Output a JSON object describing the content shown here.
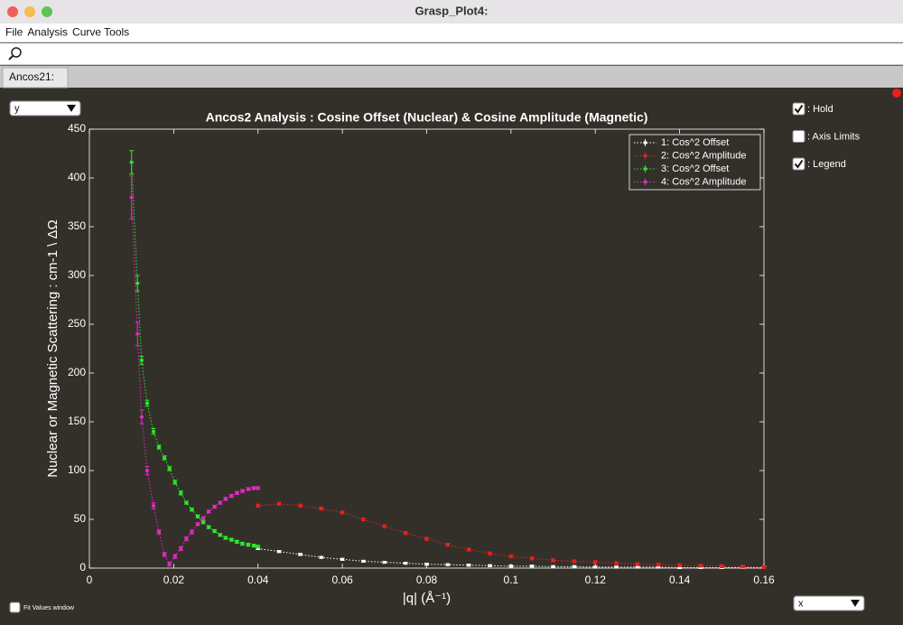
{
  "window": {
    "title": "Grasp_Plot4:"
  },
  "menu": [
    "File",
    "Analysis",
    "Curve Tools"
  ],
  "tab": "Ancos21:",
  "y_selector": "y",
  "x_selector": "x",
  "checkboxes": [
    {
      "label": ": Hold",
      "checked": true
    },
    {
      "label": ": Axis Limits",
      "checked": false
    },
    {
      "label": ": Legend",
      "checked": true
    }
  ],
  "fit_checkbox": {
    "label": "Fit Values window",
    "checked": false
  },
  "chart_data": {
    "type": "line",
    "title": "Ancos2 Analysis : Cosine Offset (Nuclear) & Cosine Amplitude (Magnetic)",
    "xlabel": "|q|  (Å⁻¹)",
    "ylabel": "Nuclear  or  Magnetic  Scattering  :  cm-1  \\  ΔΩ",
    "xlim": [
      0,
      0.16
    ],
    "ylim": [
      0,
      450
    ],
    "xticks": [
      0,
      0.02,
      0.04,
      0.06,
      0.08,
      0.1,
      0.12,
      0.14,
      0.16
    ],
    "yticks": [
      0,
      50,
      100,
      150,
      200,
      250,
      300,
      350,
      400,
      450
    ],
    "legend": "upper right",
    "series": [
      {
        "name": "1: Cos^2 Offset",
        "color": "#ffffff",
        "x": [
          0.04,
          0.045,
          0.05,
          0.055,
          0.06,
          0.065,
          0.07,
          0.075,
          0.08,
          0.085,
          0.09,
          0.095,
          0.1,
          0.105,
          0.11,
          0.115,
          0.12,
          0.125,
          0.13,
          0.135,
          0.14,
          0.145,
          0.15,
          0.155,
          0.16
        ],
        "values": [
          20,
          17,
          14,
          11,
          9,
          7,
          6,
          5,
          4,
          3.5,
          3,
          2.5,
          2,
          2,
          1.5,
          1.5,
          1,
          1,
          1,
          1,
          0.5,
          0.5,
          0.5,
          0.5,
          0.5
        ],
        "errors": [
          1,
          1,
          1,
          1,
          1,
          1,
          1,
          1,
          1,
          1,
          1,
          1,
          1,
          1,
          1,
          1,
          1,
          1,
          1,
          1,
          1,
          1,
          1,
          1,
          1
        ]
      },
      {
        "name": "2: Cos^2 Amplitude",
        "color": "#e8201c",
        "x": [
          0.04,
          0.045,
          0.05,
          0.055,
          0.06,
          0.065,
          0.07,
          0.075,
          0.08,
          0.085,
          0.09,
          0.095,
          0.1,
          0.105,
          0.11,
          0.115,
          0.12,
          0.125,
          0.13,
          0.135,
          0.14,
          0.145,
          0.15,
          0.155,
          0.16
        ],
        "values": [
          64,
          66,
          64,
          61,
          57,
          50,
          43,
          36,
          30,
          24,
          19,
          15,
          12,
          10,
          8,
          7,
          6,
          5,
          4,
          3.5,
          3,
          2.5,
          2,
          1.5,
          1
        ],
        "errors": [
          1.5,
          1.5,
          1.5,
          1.5,
          1.5,
          1.5,
          1.5,
          1.5,
          1.5,
          1.5,
          1.5,
          1.5,
          1.5,
          1.5,
          1.5,
          1.5,
          1.5,
          1.5,
          1.5,
          1.5,
          1.5,
          1.5,
          1.5,
          1.5,
          1.5
        ]
      },
      {
        "name": "3: Cos^2 Offset",
        "color": "#2ee82a",
        "x": [
          0.01,
          0.0114,
          0.0124,
          0.0137,
          0.0152,
          0.0165,
          0.0178,
          0.019,
          0.0203,
          0.0217,
          0.023,
          0.0243,
          0.0257,
          0.027,
          0.0283,
          0.0297,
          0.031,
          0.0323,
          0.0337,
          0.035,
          0.0363,
          0.0377,
          0.039,
          0.04
        ],
        "values": [
          416,
          292,
          213,
          169,
          140,
          124,
          113,
          102,
          88,
          77,
          67,
          60,
          53,
          47,
          42,
          38,
          34,
          31,
          29,
          27,
          25,
          24,
          23,
          22
        ],
        "errors": [
          12,
          8,
          4,
          3,
          3,
          2,
          2,
          2,
          2,
          2,
          1.5,
          1.5,
          1.5,
          1.5,
          1.5,
          1.5,
          1.5,
          1.5,
          1.5,
          1.5,
          1.5,
          1.5,
          1.5,
          1.5
        ]
      },
      {
        "name": "4: Cos^2 Amplitude",
        "color": "#e02cc0",
        "x": [
          0.01,
          0.0114,
          0.0124,
          0.0137,
          0.0152,
          0.0165,
          0.0178,
          0.019,
          0.0203,
          0.0217,
          0.023,
          0.0243,
          0.0257,
          0.027,
          0.0283,
          0.0297,
          0.031,
          0.0323,
          0.0337,
          0.035,
          0.0363,
          0.0377,
          0.039,
          0.04
        ],
        "values": [
          380,
          240,
          155,
          100,
          64,
          37,
          14,
          4,
          12,
          20,
          30,
          37,
          45,
          51,
          58,
          63,
          67,
          71,
          74,
          77,
          79,
          81,
          82,
          82
        ],
        "errors": [
          22,
          12,
          7,
          4,
          3,
          2,
          2,
          2,
          2,
          2,
          2,
          2,
          1.5,
          1.5,
          1.5,
          1.5,
          1.5,
          1.5,
          1.5,
          1.5,
          1.5,
          1.5,
          1.5,
          1.5
        ]
      }
    ]
  }
}
